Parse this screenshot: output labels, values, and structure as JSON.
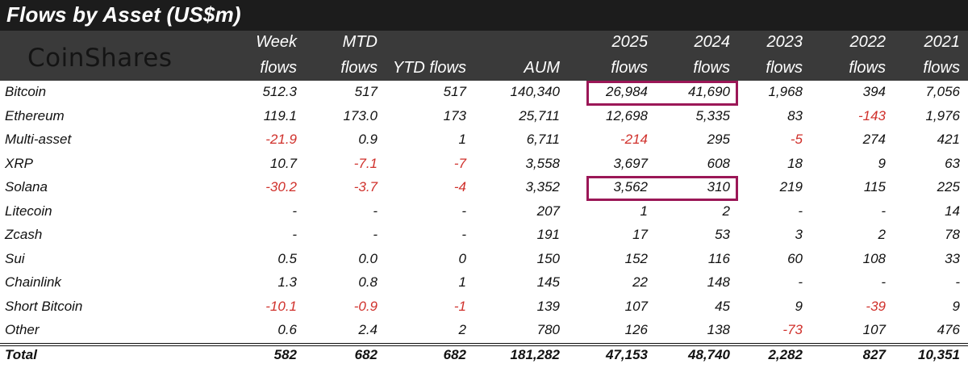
{
  "title": "Flows by Asset (US$m)",
  "logo_text": "CoinShares",
  "colors": {
    "negative": "#d0302b",
    "highlight": "#9b1757",
    "header_bg": "#3a3a3a",
    "title_bg": "#1c1c1c"
  },
  "chart_data": {
    "type": "table",
    "columns": [
      {
        "line1": "Week",
        "line2": "flows"
      },
      {
        "line1": "MTD",
        "line2": "flows"
      },
      {
        "line1": "",
        "line2": "YTD flows"
      },
      {
        "line1": "",
        "line2": "AUM"
      },
      {
        "line1": "2025",
        "line2": "flows"
      },
      {
        "line1": "2024",
        "line2": "flows"
      },
      {
        "line1": "2023",
        "line2": "flows"
      },
      {
        "line1": "2022",
        "line2": "flows"
      },
      {
        "line1": "2021",
        "line2": "flows"
      }
    ],
    "rows": [
      {
        "asset": "Bitcoin",
        "values": [
          "512.3",
          "517",
          "517",
          "140,340",
          "26,984",
          "41,690",
          "1,968",
          "394",
          "7,056"
        ]
      },
      {
        "asset": "Ethereum",
        "values": [
          "119.1",
          "173.0",
          "173",
          "25,711",
          "12,698",
          "5,335",
          "83",
          "-143",
          "1,976"
        ]
      },
      {
        "asset": "Multi-asset",
        "values": [
          "-21.9",
          "0.9",
          "1",
          "6,711",
          "-214",
          "295",
          "-5",
          "274",
          "421"
        ]
      },
      {
        "asset": "XRP",
        "values": [
          "10.7",
          "-7.1",
          "-7",
          "3,558",
          "3,697",
          "608",
          "18",
          "9",
          "63"
        ]
      },
      {
        "asset": "Solana",
        "values": [
          "-30.2",
          "-3.7",
          "-4",
          "3,352",
          "3,562",
          "310",
          "219",
          "115",
          "225"
        ]
      },
      {
        "asset": "Litecoin",
        "values": [
          "-",
          "-",
          "-",
          "207",
          "1",
          "2",
          "-",
          "-",
          "14"
        ]
      },
      {
        "asset": "Zcash",
        "values": [
          "-",
          "-",
          "-",
          "191",
          "17",
          "53",
          "3",
          "2",
          "78"
        ]
      },
      {
        "asset": "Sui",
        "values": [
          "0.5",
          "0.0",
          "0",
          "150",
          "152",
          "116",
          "60",
          "108",
          "33"
        ]
      },
      {
        "asset": "Chainlink",
        "values": [
          "1.3",
          "0.8",
          "1",
          "145",
          "22",
          "148",
          "-",
          "-",
          "-"
        ]
      },
      {
        "asset": "Short Bitcoin",
        "values": [
          "-10.1",
          "-0.9",
          "-1",
          "139",
          "107",
          "45",
          "9",
          "-39",
          "9"
        ]
      },
      {
        "asset": "Other",
        "values": [
          "0.6",
          "2.4",
          "2",
          "780",
          "126",
          "138",
          "-73",
          "107",
          "476"
        ]
      }
    ],
    "total": {
      "asset": "Total",
      "values": [
        "582",
        "682",
        "682",
        "181,282",
        "47,153",
        "48,740",
        "2,282",
        "827",
        "10,351"
      ]
    },
    "highlights": [
      {
        "row": "Bitcoin",
        "columns": [
          "2025",
          "2024"
        ]
      },
      {
        "row": "Solana",
        "columns": [
          "2025",
          "2024"
        ]
      }
    ]
  }
}
